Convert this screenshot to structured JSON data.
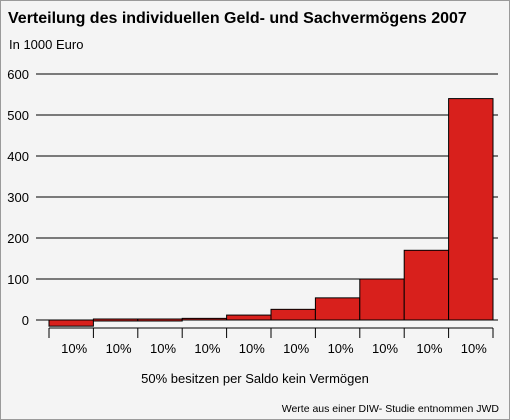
{
  "chart_data": {
    "type": "bar",
    "title": "Verteilung des individuellen Geld- und Sachvermögens 2007",
    "unit_label": "In 1000 Euro",
    "categories": [
      "10%",
      "10%",
      "10%",
      "10%",
      "10%",
      "10%",
      "10%",
      "10%",
      "10%",
      "10%"
    ],
    "values": [
      -15,
      0,
      0,
      4,
      12,
      26,
      54,
      100,
      170,
      540
    ],
    "yticks": [
      0,
      100,
      200,
      300,
      400,
      500,
      600
    ],
    "ylim": [
      -20,
      620
    ],
    "grid": true,
    "bar_color": "#d8201c",
    "annotation": "50% besitzen per Saldo kein Vermögen",
    "source": "Werte aus einer DIW- Studie entnommen  JWD"
  }
}
